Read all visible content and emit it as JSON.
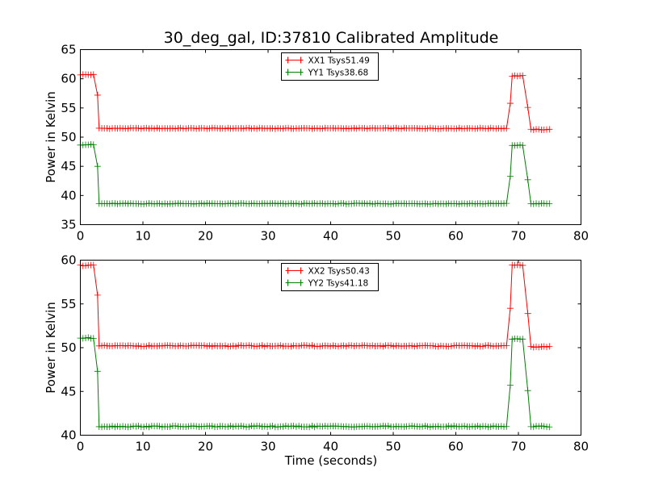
{
  "chart_data": [
    {
      "type": "line",
      "title": "30_deg_gal, ID:37810 Calibrated Amplitude",
      "xlabel": "",
      "ylabel": "Power in Kelvin",
      "xlim": [
        0,
        80
      ],
      "ylim": [
        35,
        65
      ],
      "xticks": [
        "0",
        "10",
        "20",
        "30",
        "40",
        "50",
        "60",
        "70",
        "80"
      ],
      "yticks": [
        "35",
        "40",
        "45",
        "50",
        "55",
        "60",
        "65"
      ],
      "xtick_values": [
        0,
        10,
        20,
        30,
        40,
        50,
        60,
        70,
        80
      ],
      "ytick_values": [
        35,
        40,
        45,
        50,
        55,
        60,
        65
      ],
      "grid": false,
      "legend_position": "top-center",
      "marker": "+",
      "series": [
        {
          "name": "XX1 Tsys51.49",
          "color": "#ff0000",
          "segments": [
            {
              "x_start": 0,
              "x_end": 2.5,
              "y": 60.7
            },
            {
              "x_start": 2.75,
              "x_end": 2.75,
              "y": 57.2
            },
            {
              "x_start": 3.0,
              "x_end": 68.3,
              "y": 51.5
            },
            {
              "x_start": 68.7,
              "x_end": 68.7,
              "y": 55.8
            },
            {
              "x_start": 69.0,
              "x_end": 71.0,
              "y": 60.5
            },
            {
              "x_start": 71.5,
              "x_end": 71.5,
              "y": 55.1
            },
            {
              "x_start": 72.0,
              "x_end": 75.0,
              "y": 51.3
            }
          ]
        },
        {
          "name": "YY1 Tsys38.68",
          "color": "#008000",
          "segments": [
            {
              "x_start": 0,
              "x_end": 2.5,
              "y": 48.7
            },
            {
              "x_start": 2.75,
              "x_end": 2.75,
              "y": 45.0
            },
            {
              "x_start": 3.0,
              "x_end": 68.3,
              "y": 38.6
            },
            {
              "x_start": 68.7,
              "x_end": 68.7,
              "y": 43.3
            },
            {
              "x_start": 69.0,
              "x_end": 71.0,
              "y": 48.6
            },
            {
              "x_start": 71.5,
              "x_end": 71.5,
              "y": 42.7
            },
            {
              "x_start": 72.0,
              "x_end": 75.0,
              "y": 38.6
            }
          ]
        }
      ]
    },
    {
      "type": "line",
      "title": "",
      "xlabel": "Time (seconds)",
      "ylabel": "Power in Kelvin",
      "xlim": [
        0,
        80
      ],
      "ylim": [
        40,
        60
      ],
      "xticks": [
        "0",
        "10",
        "20",
        "30",
        "40",
        "50",
        "60",
        "70",
        "80"
      ],
      "yticks": [
        "40",
        "45",
        "50",
        "55",
        "60"
      ],
      "xtick_values": [
        0,
        10,
        20,
        30,
        40,
        50,
        60,
        70,
        80
      ],
      "ytick_values": [
        40,
        45,
        50,
        55,
        60
      ],
      "grid": false,
      "legend_position": "top-center",
      "marker": "+",
      "series": [
        {
          "name": "XX2 Tsys50.43",
          "color": "#ff0000",
          "segments": [
            {
              "x_start": 0,
              "x_end": 2.5,
              "y": 59.4
            },
            {
              "x_start": 2.75,
              "x_end": 2.75,
              "y": 56.0
            },
            {
              "x_start": 3.0,
              "x_end": 68.3,
              "y": 50.2
            },
            {
              "x_start": 68.7,
              "x_end": 68.7,
              "y": 54.5
            },
            {
              "x_start": 69.0,
              "x_end": 71.0,
              "y": 59.4
            },
            {
              "x_start": 71.5,
              "x_end": 71.5,
              "y": 53.9
            },
            {
              "x_start": 72.0,
              "x_end": 75.0,
              "y": 50.1
            }
          ]
        },
        {
          "name": "YY2 Tsys41.18",
          "color": "#008000",
          "segments": [
            {
              "x_start": 0,
              "x_end": 2.5,
              "y": 51.1
            },
            {
              "x_start": 2.75,
              "x_end": 2.75,
              "y": 47.3
            },
            {
              "x_start": 3.0,
              "x_end": 68.3,
              "y": 41.0
            },
            {
              "x_start": 68.7,
              "x_end": 68.7,
              "y": 45.7
            },
            {
              "x_start": 69.0,
              "x_end": 71.0,
              "y": 51.0
            },
            {
              "x_start": 71.5,
              "x_end": 71.5,
              "y": 45.1
            },
            {
              "x_start": 72.0,
              "x_end": 75.0,
              "y": 41.0
            }
          ]
        }
      ]
    }
  ]
}
